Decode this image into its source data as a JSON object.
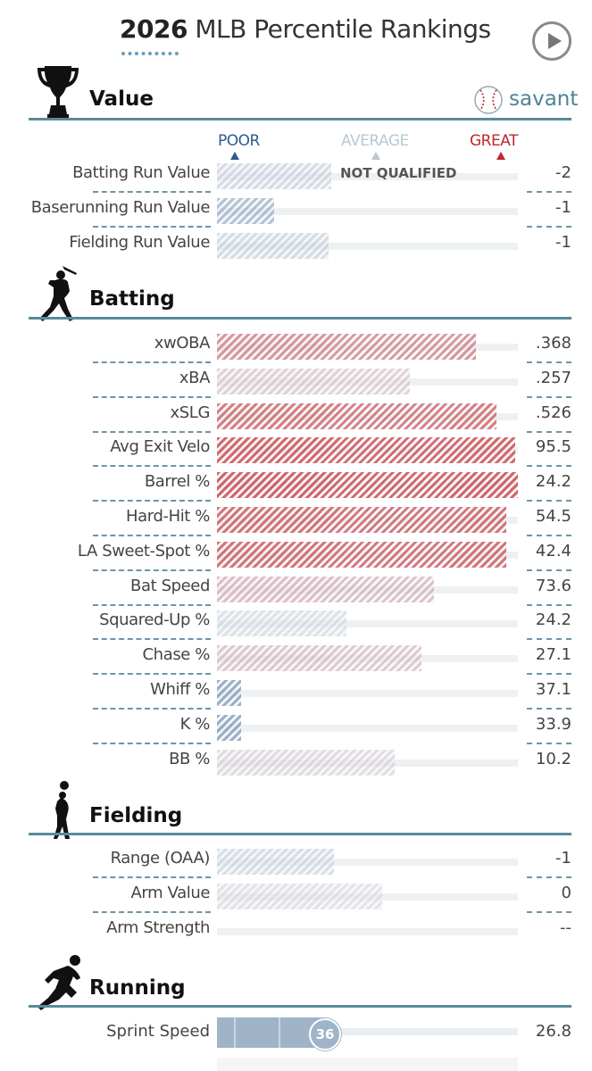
{
  "header": {
    "title_year": "2026",
    "title_rest": "MLB Percentile Rankings",
    "play_icon": "play-icon"
  },
  "brand": {
    "name": "savant",
    "color": "#4c8497",
    "icon": "baseball-icon"
  },
  "scale": {
    "poor": {
      "label": "POOR",
      "color": "#2e5b8f"
    },
    "average": {
      "label": "AVERAGE",
      "color": "#b9c8d2"
    },
    "great": {
      "label": "GREAT",
      "color": "#c0282d"
    }
  },
  "sections": {
    "value": {
      "label": "Value",
      "icon": "trophy-icon"
    },
    "batting": {
      "label": "Batting",
      "icon": "batter-icon"
    },
    "fielding": {
      "label": "Fielding",
      "icon": "fielder-icon"
    },
    "running": {
      "label": "Running",
      "icon": "runner-icon"
    }
  },
  "not_qualified_label": "NOT QUALIFIED",
  "chart_data": {
    "type": "bar",
    "orientation": "horizontal",
    "x_axis": "percentile",
    "xlim": [
      0,
      100
    ],
    "rows": {
      "value": [
        {
          "metric": "Batting Run Value",
          "percentile": 38,
          "value": "-2",
          "qualified": false
        },
        {
          "metric": "Baserunning Run Value",
          "percentile": 19,
          "value": "-1"
        },
        {
          "metric": "Fielding Run Value",
          "percentile": 37,
          "value": "-1"
        }
      ],
      "batting": [
        {
          "metric": "xwOBA",
          "percentile": 86,
          "value": ".368"
        },
        {
          "metric": "xBA",
          "percentile": 64,
          "value": ".257"
        },
        {
          "metric": "xSLG",
          "percentile": 93,
          "value": ".526"
        },
        {
          "metric": "Avg Exit Velo",
          "percentile": 99,
          "value": "95.5"
        },
        {
          "metric": "Barrel %",
          "percentile": 100,
          "value": "24.2"
        },
        {
          "metric": "Hard-Hit %",
          "percentile": 96,
          "value": "54.5"
        },
        {
          "metric": "LA Sweet-Spot %",
          "percentile": 96,
          "value": "42.4"
        },
        {
          "metric": "Bat Speed",
          "percentile": 72,
          "value": "73.6"
        },
        {
          "metric": "Squared-Up %",
          "percentile": 43,
          "value": "24.2"
        },
        {
          "metric": "Chase %",
          "percentile": 68,
          "value": "27.1"
        },
        {
          "metric": "Whiff %",
          "percentile": 8,
          "value": "37.1"
        },
        {
          "metric": "K %",
          "percentile": 8,
          "value": "33.9"
        },
        {
          "metric": "BB %",
          "percentile": 59,
          "value": "10.2"
        }
      ],
      "fielding": [
        {
          "metric": "Range (OAA)",
          "percentile": 39,
          "value": "-1"
        },
        {
          "metric": "Arm Value",
          "percentile": 55,
          "value": "0"
        },
        {
          "metric": "Arm Strength",
          "percentile": null,
          "value": "--"
        }
      ],
      "running": [
        {
          "metric": "Sprint Speed",
          "percentile": 36,
          "value": "26.8"
        }
      ]
    }
  }
}
